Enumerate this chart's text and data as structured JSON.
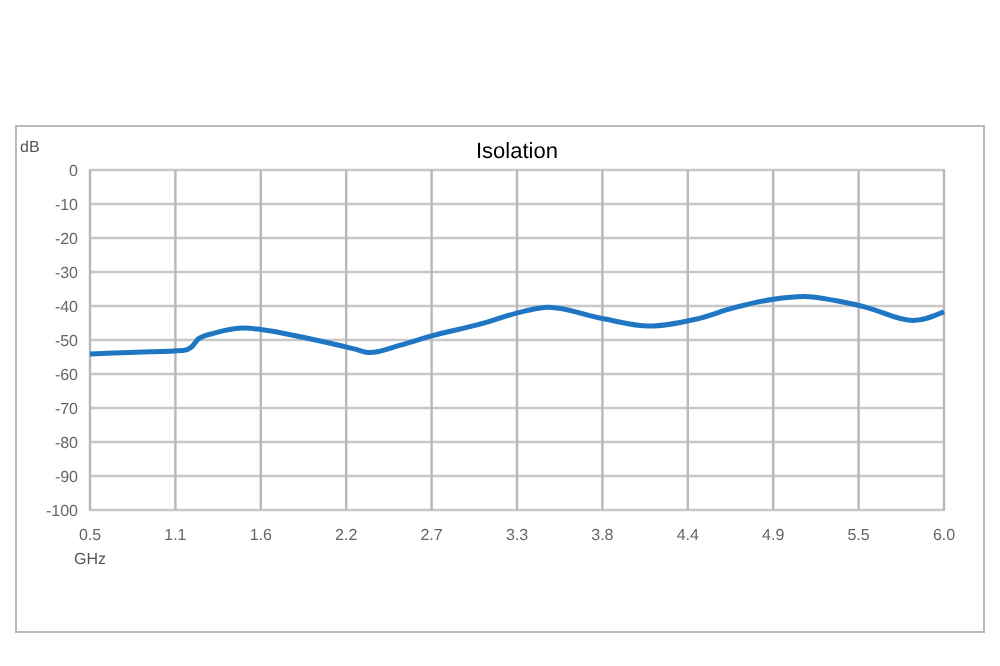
{
  "chart_data": {
    "type": "line",
    "title": "Isolation",
    "xlabel": "GHz",
    "ylabel": "dB",
    "x": [
      0.5,
      0.8,
      1.1,
      1.15,
      1.2,
      1.3,
      1.5,
      1.6,
      1.9,
      2.2,
      2.3,
      2.5,
      2.7,
      3.0,
      3.3,
      3.45,
      3.8,
      4.1,
      4.4,
      4.65,
      4.9,
      5.1,
      5.3,
      5.5,
      5.8,
      6.0
    ],
    "series": [
      {
        "color": "#1f77c4",
        "values": [
          -54.1,
          -53.6,
          -53.1,
          -52.2,
          -49.6,
          -48,
          -46.5,
          -46.9,
          -49.5,
          -52.6,
          -53.7,
          -51.5,
          -48.8,
          -45.5,
          -41.5,
          -40.4,
          -43.7,
          -45.9,
          -43.9,
          -40.5,
          -38,
          -37.2,
          -38.4,
          -40.4,
          -44.3,
          -41.7
        ]
      }
    ],
    "xlim": [
      0.5,
      6.0
    ],
    "xticks": [
      0.5,
      {
        "value": 1.05,
        "label": "1.1"
      },
      1.6,
      {
        "value": 2.15,
        "label": "2.2"
      },
      2.7,
      {
        "value": 3.25,
        "label": "3.3"
      },
      3.8,
      {
        "value": 4.35,
        "label": "4.4"
      },
      4.9,
      {
        "value": 5.45,
        "label": "5.5"
      },
      "6.0"
    ],
    "ylim": [
      -100,
      0
    ],
    "yticks": [
      -100,
      -90,
      -80,
      -70,
      -60,
      -50,
      -40,
      -30,
      -20,
      -10,
      0
    ],
    "grid": true,
    "marker": "none",
    "line_style": "solid"
  }
}
